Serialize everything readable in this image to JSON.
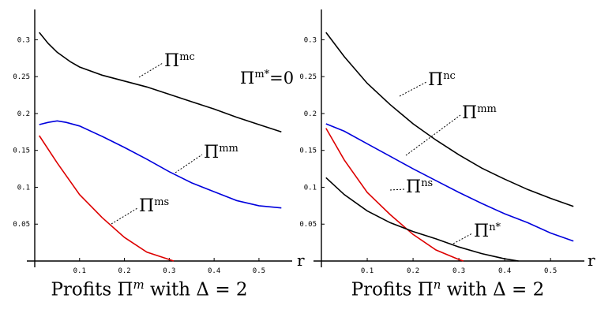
{
  "chart_data": [
    {
      "type": "line",
      "caption": {
        "prefix": "Profits ",
        "pi": "Π",
        "sup": "m",
        "middle": " with ",
        "delta": "Δ = 2"
      },
      "xlabel": "r",
      "xlim": [
        0,
        0.56
      ],
      "ylim": [
        0,
        0.34
      ],
      "xticks": [
        "0.1",
        "0.2",
        "0.3",
        "0.4",
        "0.5"
      ],
      "yticks": [
        "0.05",
        "0.1",
        "0.15",
        "0.2",
        "0.25",
        "0.3"
      ],
      "annotations": [
        {
          "text": "Πm*=0"
        }
      ],
      "series": [
        {
          "name": "Πmc",
          "color": "#000000",
          "x": [
            0.01,
            0.03,
            0.05,
            0.08,
            0.1,
            0.15,
            0.2,
            0.25,
            0.3,
            0.35,
            0.4,
            0.45,
            0.5,
            0.55
          ],
          "y": [
            0.31,
            0.295,
            0.283,
            0.27,
            0.263,
            0.252,
            0.244,
            0.236,
            0.226,
            0.216,
            0.206,
            0.195,
            0.185,
            0.175
          ]
        },
        {
          "name": "Πmm",
          "color": "#0000dd",
          "x": [
            0.01,
            0.03,
            0.05,
            0.07,
            0.1,
            0.15,
            0.2,
            0.25,
            0.3,
            0.35,
            0.4,
            0.45,
            0.5,
            0.55
          ],
          "y": [
            0.185,
            0.188,
            0.19,
            0.188,
            0.183,
            0.169,
            0.154,
            0.138,
            0.121,
            0.106,
            0.094,
            0.082,
            0.075,
            0.072
          ]
        },
        {
          "name": "Πms",
          "color": "#dd0000",
          "x": [
            0.01,
            0.05,
            0.1,
            0.15,
            0.2,
            0.25,
            0.3,
            0.31
          ],
          "y": [
            0.17,
            0.133,
            0.09,
            0.059,
            0.032,
            0.012,
            0.002,
            0.0
          ]
        }
      ]
    },
    {
      "type": "line",
      "caption": {
        "prefix": "Profits ",
        "pi": "Π",
        "sup": "n",
        "middle": " with ",
        "delta": "Δ = 2"
      },
      "xlabel": "r",
      "xlim": [
        0,
        0.56
      ],
      "ylim": [
        0,
        0.34
      ],
      "xticks": [
        "0.1",
        "0.2",
        "0.3",
        "0.4",
        "0.5"
      ],
      "yticks": [
        "0.05",
        "0.1",
        "0.15",
        "0.2",
        "0.25",
        "0.3"
      ],
      "annotations": [],
      "series": [
        {
          "name": "Πnc",
          "color": "#000000",
          "x": [
            0.01,
            0.05,
            0.1,
            0.15,
            0.2,
            0.25,
            0.3,
            0.35,
            0.4,
            0.45,
            0.5,
            0.55
          ],
          "y": [
            0.31,
            0.277,
            0.241,
            0.212,
            0.186,
            0.164,
            0.144,
            0.126,
            0.111,
            0.097,
            0.085,
            0.074
          ]
        },
        {
          "name": "Πmm",
          "color": "#0000dd",
          "x": [
            0.01,
            0.05,
            0.1,
            0.15,
            0.2,
            0.25,
            0.3,
            0.35,
            0.4,
            0.45,
            0.5,
            0.55
          ],
          "y": [
            0.186,
            0.176,
            0.159,
            0.142,
            0.125,
            0.109,
            0.093,
            0.078,
            0.064,
            0.052,
            0.038,
            0.027
          ]
        },
        {
          "name": "Πns",
          "color": "#dd0000",
          "x": [
            0.01,
            0.05,
            0.1,
            0.15,
            0.2,
            0.25,
            0.3,
            0.31
          ],
          "y": [
            0.18,
            0.137,
            0.093,
            0.063,
            0.036,
            0.015,
            0.002,
            0.0
          ]
        },
        {
          "name": "Πn*",
          "color": "#000000",
          "x": [
            0.01,
            0.05,
            0.1,
            0.15,
            0.2,
            0.25,
            0.3,
            0.35,
            0.4,
            0.43
          ],
          "y": [
            0.113,
            0.09,
            0.068,
            0.052,
            0.04,
            0.03,
            0.019,
            0.01,
            0.003,
            0.0
          ]
        }
      ]
    }
  ]
}
